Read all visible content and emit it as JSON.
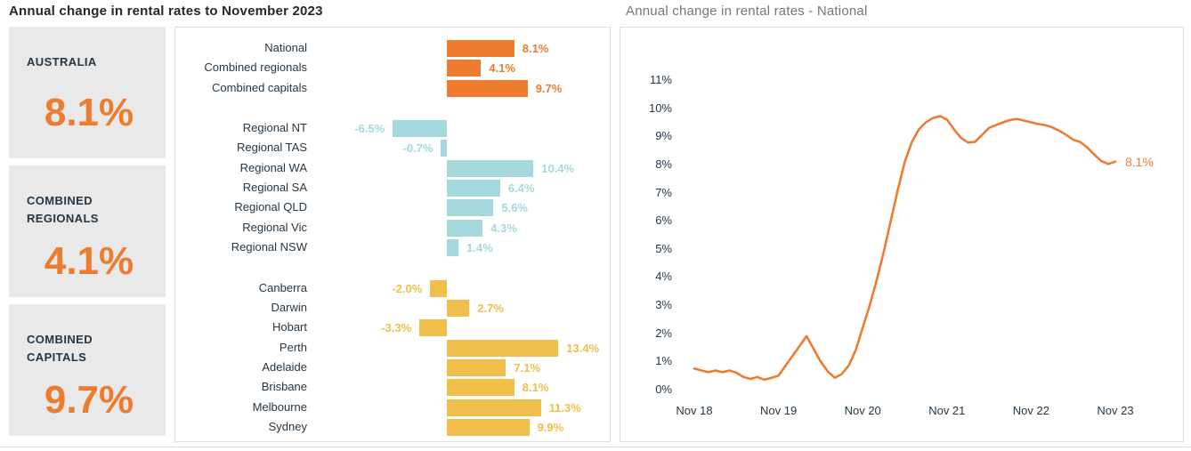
{
  "left_chart": {
    "title": "Annual change in rental rates to November 2023",
    "summary_tiles": [
      {
        "label": "AUSTRALIA",
        "value": "8.1%"
      },
      {
        "label": "COMBINED REGIONALS",
        "value": "4.1%"
      },
      {
        "label": "COMBINED CAPITALS",
        "value": "9.7%"
      }
    ]
  },
  "right_chart": {
    "title": "Annual change in rental rates - National",
    "end_label": "8.1%"
  },
  "colors": {
    "orange": "#ed7c30",
    "teal": "#a5d8dc",
    "gold": "#f0be4a",
    "navy_text": "#243746",
    "tile_bg": "#e9e9e9",
    "panel_border": "#dedede",
    "right_title_gray": "#76767f"
  },
  "chart_data": [
    {
      "type": "bar",
      "orientation": "horizontal",
      "title": "Annual change in rental rates to November 2023",
      "unit": "%",
      "grid": false,
      "xlim": [
        -16,
        20
      ],
      "groups": [
        {
          "name": "aggregates",
          "color": "#ed7c30",
          "items": [
            {
              "label": "National",
              "value": 8.1,
              "value_label": "8.1%"
            },
            {
              "label": "Combined regionals",
              "value": 4.1,
              "value_label": "4.1%"
            },
            {
              "label": "Combined capitals",
              "value": 9.7,
              "value_label": "9.7%"
            }
          ]
        },
        {
          "name": "regionals",
          "color": "#a5d8dc",
          "items": [
            {
              "label": "Regional NT",
              "value": -6.5,
              "value_label": "-6.5%"
            },
            {
              "label": "Regional TAS",
              "value": -0.7,
              "value_label": "-0.7%"
            },
            {
              "label": "Regional WA",
              "value": 10.4,
              "value_label": "10.4%"
            },
            {
              "label": "Regional SA",
              "value": 6.4,
              "value_label": "6.4%"
            },
            {
              "label": "Regional QLD",
              "value": 5.6,
              "value_label": "5.6%"
            },
            {
              "label": "Regional Vic",
              "value": 4.3,
              "value_label": "4.3%"
            },
            {
              "label": "Regional NSW",
              "value": 1.4,
              "value_label": "1.4%"
            }
          ]
        },
        {
          "name": "capitals",
          "color": "#f0be4a",
          "items": [
            {
              "label": "Canberra",
              "value": -2.0,
              "value_label": "-2.0%"
            },
            {
              "label": "Darwin",
              "value": 2.7,
              "value_label": "2.7%"
            },
            {
              "label": "Hobart",
              "value": -3.3,
              "value_label": "-3.3%"
            },
            {
              "label": "Perth",
              "value": 13.4,
              "value_label": "13.4%"
            },
            {
              "label": "Adelaide",
              "value": 7.1,
              "value_label": "7.1%"
            },
            {
              "label": "Brisbane",
              "value": 8.1,
              "value_label": "8.1%"
            },
            {
              "label": "Melbourne",
              "value": 11.3,
              "value_label": "11.3%"
            },
            {
              "label": "Sydney",
              "value": 9.9,
              "value_label": "9.9%"
            }
          ]
        }
      ]
    },
    {
      "type": "line",
      "title": "Annual change in rental rates - National",
      "grid": false,
      "ylim": [
        0,
        11
      ],
      "y_ticks": [
        "0%",
        "1%",
        "2%",
        "3%",
        "4%",
        "5%",
        "6%",
        "7%",
        "8%",
        "9%",
        "10%",
        "11%"
      ],
      "x_ticks": [
        "Nov 18",
        "Nov 19",
        "Nov 20",
        "Nov 21",
        "Nov 22",
        "Nov 23"
      ],
      "end_label": "8.1%",
      "series": [
        {
          "name": "National",
          "color": "#ed7c30",
          "interval": "monthly",
          "x_start": "Nov 2018",
          "x_end": "Nov 2023",
          "values": [
            0.75,
            0.68,
            0.62,
            0.68,
            0.62,
            0.68,
            0.6,
            0.45,
            0.38,
            0.45,
            0.35,
            0.42,
            0.5,
            0.85,
            1.2,
            1.55,
            1.9,
            1.45,
            1.0,
            0.65,
            0.42,
            0.55,
            0.85,
            1.4,
            2.2,
            3.0,
            3.9,
            4.9,
            6.0,
            7.1,
            8.1,
            8.8,
            9.25,
            9.5,
            9.65,
            9.72,
            9.6,
            9.25,
            8.95,
            8.78,
            8.8,
            9.05,
            9.3,
            9.4,
            9.5,
            9.58,
            9.62,
            9.56,
            9.5,
            9.44,
            9.4,
            9.32,
            9.2,
            9.05,
            8.88,
            8.8,
            8.6,
            8.35,
            8.12,
            8.02,
            8.1
          ]
        }
      ]
    }
  ]
}
